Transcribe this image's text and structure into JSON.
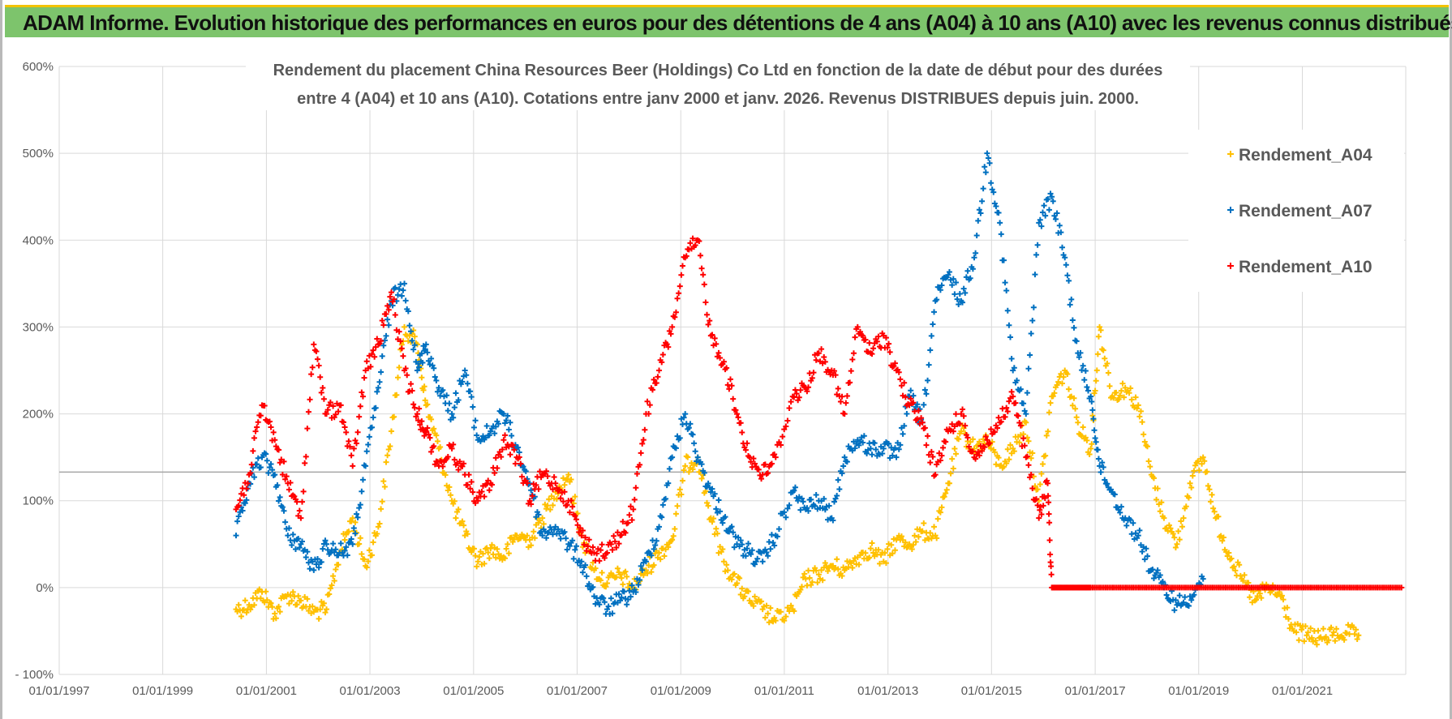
{
  "banner": {
    "title": "ADAM Informe. Evolution historique des performances en euros pour des détentions de 4 ans (A04) à 10 ans (A10) avec les revenus connus distribués"
  },
  "colors": {
    "banner_bg": "#7dc46c",
    "banner_top_border": "#f2c200",
    "A04": "#ffc000",
    "A07": "#0070c0",
    "A10": "#ff0000",
    "grid": "#d9d9d9",
    "reference_line": "#a6a6a6"
  },
  "chart_data": {
    "type": "scatter",
    "title_line1": "Rendement du placement China Resources Beer (Holdings) Co Ltd en fonction de la date de début pour des durées",
    "title_line2": "entre 4 (A04) et 10 ans (A10).  Cotations entre janv 2000 et janv. 2026. Revenus DISTRIBUES depuis juin. 2000.",
    "xlabel": "",
    "ylabel": "",
    "x_axis": {
      "type": "date",
      "range": [
        "1997-01-01",
        "2022-12-31"
      ],
      "tick_labels": [
        "01/01/1997",
        "01/01/1999",
        "01/01/2001",
        "01/01/2003",
        "01/01/2005",
        "01/01/2007",
        "01/01/2009",
        "01/01/2011",
        "01/01/2013",
        "01/01/2015",
        "01/01/2017",
        "01/01/2019",
        "01/01/2021"
      ]
    },
    "y_axis": {
      "range": [
        -100,
        600
      ],
      "unit": "%",
      "tick_values": [
        -100,
        0,
        100,
        200,
        300,
        400,
        500,
        600
      ],
      "tick_labels": [
        "- 100%",
        "0%",
        "100%",
        "200%",
        "300%",
        "400%",
        "500%",
        "600%"
      ]
    },
    "grid": {
      "vertical": true,
      "horizontal": true
    },
    "reference_line_y": 133,
    "legend_position": "right",
    "marker": "plus",
    "series": [
      {
        "name": "Rendement_A04",
        "color": "#ffc000",
        "points": [
          [
            "2000-06-01",
            -25
          ],
          [
            "2000-09-01",
            -20
          ],
          [
            "2000-12-01",
            -5
          ],
          [
            "2001-03-01",
            -30
          ],
          [
            "2001-06-01",
            -8
          ],
          [
            "2001-09-01",
            -15
          ],
          [
            "2001-12-01",
            -28
          ],
          [
            "2002-03-01",
            -25
          ],
          [
            "2002-06-01",
            40
          ],
          [
            "2002-09-01",
            80
          ],
          [
            "2002-12-01",
            25
          ],
          [
            "2003-03-01",
            70
          ],
          [
            "2003-06-01",
            180
          ],
          [
            "2003-09-01",
            300
          ],
          [
            "2003-12-01",
            280
          ],
          [
            "2004-02-01",
            210
          ],
          [
            "2004-05-01",
            160
          ],
          [
            "2004-08-01",
            100
          ],
          [
            "2004-11-01",
            60
          ],
          [
            "2005-02-01",
            30
          ],
          [
            "2005-05-01",
            45
          ],
          [
            "2005-08-01",
            35
          ],
          [
            "2005-11-01",
            60
          ],
          [
            "2006-02-01",
            55
          ],
          [
            "2006-05-01",
            80
          ],
          [
            "2006-08-01",
            110
          ],
          [
            "2006-11-01",
            130
          ],
          [
            "2007-02-01",
            60
          ],
          [
            "2007-05-01",
            20
          ],
          [
            "2007-08-01",
            5
          ],
          [
            "2007-11-01",
            15
          ],
          [
            "2008-02-01",
            0
          ],
          [
            "2008-05-01",
            20
          ],
          [
            "2008-08-01",
            40
          ],
          [
            "2008-11-01",
            55
          ],
          [
            "2009-02-01",
            140
          ],
          [
            "2009-05-01",
            150
          ],
          [
            "2009-08-01",
            80
          ],
          [
            "2009-11-01",
            30
          ],
          [
            "2010-02-01",
            5
          ],
          [
            "2010-05-01",
            -15
          ],
          [
            "2010-08-01",
            -25
          ],
          [
            "2010-11-01",
            -38
          ],
          [
            "2011-03-01",
            -25
          ],
          [
            "2011-06-01",
            10
          ],
          [
            "2011-09-01",
            15
          ],
          [
            "2011-12-01",
            25
          ],
          [
            "2012-03-01",
            20
          ],
          [
            "2012-06-01",
            35
          ],
          [
            "2012-09-01",
            45
          ],
          [
            "2012-12-01",
            30
          ],
          [
            "2013-03-01",
            55
          ],
          [
            "2013-06-01",
            50
          ],
          [
            "2013-09-01",
            65
          ],
          [
            "2013-12-01",
            60
          ],
          [
            "2014-03-01",
            120
          ],
          [
            "2014-06-01",
            180
          ],
          [
            "2014-09-01",
            160
          ],
          [
            "2014-12-01",
            170
          ],
          [
            "2015-03-01",
            140
          ],
          [
            "2015-06-01",
            160
          ],
          [
            "2015-09-01",
            190
          ],
          [
            "2015-12-01",
            100
          ],
          [
            "2016-03-01",
            220
          ],
          [
            "2016-06-01",
            250
          ],
          [
            "2016-09-01",
            190
          ],
          [
            "2016-12-01",
            160
          ],
          [
            "2017-02-01",
            300
          ],
          [
            "2017-05-01",
            220
          ],
          [
            "2017-08-01",
            230
          ],
          [
            "2017-11-01",
            210
          ],
          [
            "2018-02-01",
            130
          ],
          [
            "2018-05-01",
            80
          ],
          [
            "2018-08-01",
            50
          ],
          [
            "2018-11-01",
            120
          ],
          [
            "2019-02-01",
            150
          ],
          [
            "2019-05-01",
            80
          ],
          [
            "2019-08-01",
            40
          ],
          [
            "2019-11-01",
            10
          ],
          [
            "2020-02-01",
            -15
          ],
          [
            "2020-05-01",
            0
          ],
          [
            "2020-08-01",
            -10
          ],
          [
            "2020-11-01",
            -50
          ],
          [
            "2021-02-01",
            -55
          ],
          [
            "2021-05-01",
            -58
          ],
          [
            "2021-08-01",
            -55
          ],
          [
            "2021-11-01",
            -52
          ],
          [
            "2022-02-01",
            -55
          ]
        ]
      },
      {
        "name": "Rendement_A07",
        "color": "#0070c0",
        "points": [
          [
            "2000-06-01",
            60
          ],
          [
            "2000-09-01",
            120
          ],
          [
            "2000-12-01",
            150
          ],
          [
            "2001-03-01",
            130
          ],
          [
            "2001-06-01",
            60
          ],
          [
            "2001-09-01",
            50
          ],
          [
            "2001-12-01",
            20
          ],
          [
            "2002-03-01",
            50
          ],
          [
            "2002-06-01",
            40
          ],
          [
            "2002-09-01",
            50
          ],
          [
            "2002-12-01",
            140
          ],
          [
            "2003-03-01",
            230
          ],
          [
            "2003-06-01",
            330
          ],
          [
            "2003-09-01",
            350
          ],
          [
            "2003-12-01",
            250
          ],
          [
            "2004-02-01",
            280
          ],
          [
            "2004-05-01",
            230
          ],
          [
            "2004-08-01",
            200
          ],
          [
            "2004-11-01",
            250
          ],
          [
            "2005-02-01",
            170
          ],
          [
            "2005-05-01",
            180
          ],
          [
            "2005-08-01",
            200
          ],
          [
            "2005-11-01",
            160
          ],
          [
            "2006-02-01",
            120
          ],
          [
            "2006-05-01",
            60
          ],
          [
            "2006-08-01",
            70
          ],
          [
            "2006-11-01",
            50
          ],
          [
            "2007-02-01",
            30
          ],
          [
            "2007-05-01",
            -10
          ],
          [
            "2007-08-01",
            -25
          ],
          [
            "2007-11-01",
            -15
          ],
          [
            "2008-02-01",
            -5
          ],
          [
            "2008-05-01",
            30
          ],
          [
            "2008-08-01",
            70
          ],
          [
            "2008-11-01",
            150
          ],
          [
            "2009-02-01",
            200
          ],
          [
            "2009-05-01",
            150
          ],
          [
            "2009-08-01",
            110
          ],
          [
            "2009-11-01",
            80
          ],
          [
            "2010-02-01",
            50
          ],
          [
            "2010-05-01",
            40
          ],
          [
            "2010-08-01",
            30
          ],
          [
            "2010-11-01",
            60
          ],
          [
            "2011-03-01",
            110
          ],
          [
            "2011-06-01",
            90
          ],
          [
            "2011-09-01",
            100
          ],
          [
            "2011-12-01",
            80
          ],
          [
            "2012-03-01",
            150
          ],
          [
            "2012-06-01",
            170
          ],
          [
            "2012-09-01",
            160
          ],
          [
            "2012-12-01",
            160
          ],
          [
            "2013-03-01",
            150
          ],
          [
            "2013-06-01",
            220
          ],
          [
            "2013-09-01",
            190
          ],
          [
            "2013-12-01",
            330
          ],
          [
            "2014-03-01",
            360
          ],
          [
            "2014-06-01",
            330
          ],
          [
            "2014-09-01",
            380
          ],
          [
            "2014-12-01",
            500
          ],
          [
            "2015-03-01",
            420
          ],
          [
            "2015-06-01",
            250
          ],
          [
            "2015-09-01",
            200
          ],
          [
            "2015-12-01",
            420
          ],
          [
            "2016-03-01",
            450
          ],
          [
            "2016-06-01",
            380
          ],
          [
            "2016-09-01",
            270
          ],
          [
            "2016-12-01",
            220
          ],
          [
            "2017-02-01",
            140
          ],
          [
            "2017-05-01",
            110
          ],
          [
            "2017-08-01",
            80
          ],
          [
            "2017-11-01",
            60
          ],
          [
            "2018-02-01",
            20
          ],
          [
            "2018-05-01",
            0
          ],
          [
            "2018-08-01",
            -20
          ],
          [
            "2018-11-01",
            -10
          ],
          [
            "2019-02-01",
            10
          ]
        ]
      },
      {
        "name": "Rendement_A10",
        "color": "#ff0000",
        "points": [
          [
            "2000-06-01",
            90
          ],
          [
            "2000-09-01",
            130
          ],
          [
            "2000-12-01",
            210
          ],
          [
            "2001-03-01",
            170
          ],
          [
            "2001-06-01",
            120
          ],
          [
            "2001-09-01",
            80
          ],
          [
            "2001-12-01",
            280
          ],
          [
            "2002-03-01",
            200
          ],
          [
            "2002-06-01",
            210
          ],
          [
            "2002-09-01",
            140
          ],
          [
            "2002-12-01",
            250
          ],
          [
            "2003-03-01",
            280
          ],
          [
            "2003-06-01",
            340
          ],
          [
            "2003-09-01",
            250
          ],
          [
            "2003-12-01",
            200
          ],
          [
            "2004-02-01",
            180
          ],
          [
            "2004-05-01",
            140
          ],
          [
            "2004-08-01",
            160
          ],
          [
            "2004-11-01",
            130
          ],
          [
            "2005-02-01",
            100
          ],
          [
            "2005-05-01",
            120
          ],
          [
            "2005-08-01",
            170
          ],
          [
            "2005-11-01",
            150
          ],
          [
            "2006-02-01",
            100
          ],
          [
            "2006-05-01",
            130
          ],
          [
            "2006-08-01",
            120
          ],
          [
            "2006-11-01",
            100
          ],
          [
            "2007-02-01",
            60
          ],
          [
            "2007-05-01",
            40
          ],
          [
            "2007-08-01",
            40
          ],
          [
            "2007-11-01",
            60
          ],
          [
            "2008-02-01",
            90
          ],
          [
            "2008-05-01",
            200
          ],
          [
            "2008-08-01",
            250
          ],
          [
            "2008-11-01",
            300
          ],
          [
            "2009-02-01",
            380
          ],
          [
            "2009-05-01",
            400
          ],
          [
            "2009-08-01",
            290
          ],
          [
            "2009-11-01",
            260
          ],
          [
            "2010-02-01",
            200
          ],
          [
            "2010-05-01",
            150
          ],
          [
            "2010-08-01",
            130
          ],
          [
            "2010-11-01",
            150
          ],
          [
            "2011-03-01",
            220
          ],
          [
            "2011-06-01",
            230
          ],
          [
            "2011-09-01",
            270
          ],
          [
            "2011-12-01",
            250
          ],
          [
            "2012-03-01",
            200
          ],
          [
            "2012-06-01",
            300
          ],
          [
            "2012-09-01",
            270
          ],
          [
            "2012-12-01",
            290
          ],
          [
            "2013-03-01",
            250
          ],
          [
            "2013-06-01",
            210
          ],
          [
            "2013-09-01",
            190
          ],
          [
            "2013-12-01",
            130
          ],
          [
            "2014-03-01",
            180
          ],
          [
            "2014-06-01",
            200
          ],
          [
            "2014-09-01",
            150
          ],
          [
            "2014-12-01",
            170
          ],
          [
            "2015-03-01",
            190
          ],
          [
            "2015-06-01",
            220
          ],
          [
            "2015-09-01",
            150
          ],
          [
            "2015-12-01",
            80
          ],
          [
            "2016-02-01",
            120
          ],
          [
            "2016-03-01",
            0
          ],
          [
            "2016-06-01",
            0
          ],
          [
            "2016-09-01",
            0
          ],
          [
            "2016-12-01",
            0
          ],
          [
            "2017-06-01",
            0
          ],
          [
            "2017-12-01",
            0
          ],
          [
            "2018-06-01",
            0
          ],
          [
            "2018-12-01",
            0
          ],
          [
            "2019-06-01",
            0
          ],
          [
            "2019-12-01",
            0
          ],
          [
            "2020-06-01",
            0
          ],
          [
            "2020-12-01",
            0
          ],
          [
            "2021-06-01",
            0
          ],
          [
            "2021-12-01",
            0
          ],
          [
            "2022-06-01",
            0
          ],
          [
            "2022-12-01",
            0
          ]
        ]
      }
    ]
  }
}
